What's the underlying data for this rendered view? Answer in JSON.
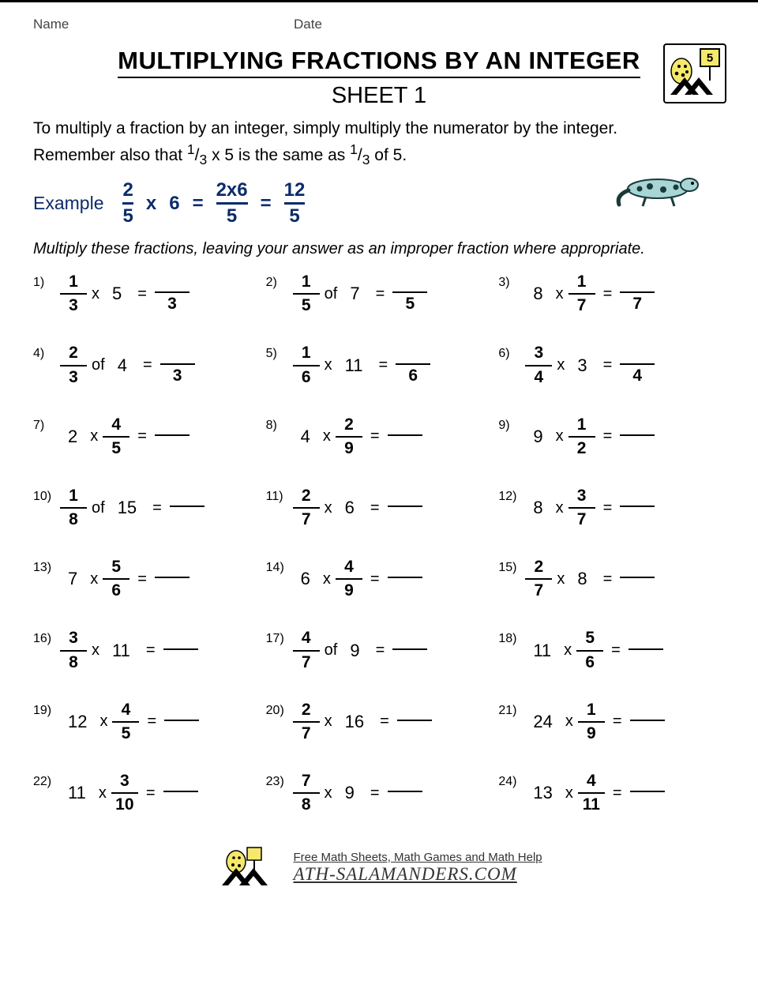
{
  "header": {
    "name_label": "Name",
    "date_label": "Date"
  },
  "title": "MULTIPLYING FRACTIONS BY AN INTEGER",
  "sheet_label": "SHEET 1",
  "logo_grade": "5",
  "instructions_line1": "To multiply a fraction by an integer, simply multiply the numerator by the integer.",
  "instructions_line2_a": "Remember also that ",
  "instructions_line2_b": " x 5 is the same as ",
  "instructions_line2_c": " of 5.",
  "inline_frac": {
    "num": "1",
    "den": "3"
  },
  "example": {
    "label": "Example",
    "f1": {
      "num": "2",
      "den": "5"
    },
    "op1": "x",
    "int1": "6",
    "eq1": "=",
    "f2": {
      "num": "2x6",
      "den": "5"
    },
    "eq2": "=",
    "f3": {
      "num": "12",
      "den": "5"
    }
  },
  "sub_instructions": "Multiply these fractions, leaving your answer as an improper fraction where appropriate.",
  "problems": [
    {
      "n": "1)",
      "layout": "frac_op_int",
      "frac": {
        "num": "1",
        "den": "3"
      },
      "op": "x",
      "int": "5",
      "ans_den": "3"
    },
    {
      "n": "2)",
      "layout": "frac_of_int",
      "frac": {
        "num": "1",
        "den": "5"
      },
      "op": "of",
      "int": "7",
      "ans_den": "5"
    },
    {
      "n": "3)",
      "layout": "int_op_frac",
      "int": "8",
      "op": "x",
      "frac": {
        "num": "1",
        "den": "7"
      },
      "ans_den": "7"
    },
    {
      "n": "4)",
      "layout": "frac_of_int",
      "frac": {
        "num": "2",
        "den": "3"
      },
      "op": "of",
      "int": "4",
      "ans_den": "3"
    },
    {
      "n": "5)",
      "layout": "frac_op_int",
      "frac": {
        "num": "1",
        "den": "6"
      },
      "op": "x",
      "int": "11",
      "ans_den": "6"
    },
    {
      "n": "6)",
      "layout": "frac_op_int",
      "frac": {
        "num": "3",
        "den": "4"
      },
      "op": "x",
      "int": "3",
      "ans_den": "4"
    },
    {
      "n": "7)",
      "layout": "int_op_frac",
      "int": "2",
      "op": "x",
      "frac": {
        "num": "4",
        "den": "5"
      },
      "ans_den": ""
    },
    {
      "n": "8)",
      "layout": "int_op_frac",
      "int": "4",
      "op": "x",
      "frac": {
        "num": "2",
        "den": "9"
      },
      "ans_den": ""
    },
    {
      "n": "9)",
      "layout": "int_op_frac",
      "int": "9",
      "op": "x",
      "frac": {
        "num": "1",
        "den": "2"
      },
      "ans_den": ""
    },
    {
      "n": "10)",
      "layout": "frac_of_int",
      "frac": {
        "num": "1",
        "den": "8"
      },
      "op": "of",
      "int": "15",
      "ans_den": ""
    },
    {
      "n": "11)",
      "layout": "frac_op_int",
      "frac": {
        "num": "2",
        "den": "7"
      },
      "op": "x",
      "int": "6",
      "ans_den": ""
    },
    {
      "n": "12)",
      "layout": "int_op_frac",
      "int": "8",
      "op": "x",
      "frac": {
        "num": "3",
        "den": "7"
      },
      "ans_den": ""
    },
    {
      "n": "13)",
      "layout": "int_op_frac",
      "int": "7",
      "op": "x",
      "frac": {
        "num": "5",
        "den": "6"
      },
      "ans_den": ""
    },
    {
      "n": "14)",
      "layout": "int_op_frac",
      "int": "6",
      "op": "x",
      "frac": {
        "num": "4",
        "den": "9"
      },
      "ans_den": ""
    },
    {
      "n": "15)",
      "layout": "frac_op_int",
      "frac": {
        "num": "2",
        "den": "7"
      },
      "op": "x",
      "int": "8",
      "ans_den": ""
    },
    {
      "n": "16)",
      "layout": "frac_op_int",
      "frac": {
        "num": "3",
        "den": "8"
      },
      "op": "x",
      "int": "11",
      "ans_den": ""
    },
    {
      "n": "17)",
      "layout": "frac_of_int",
      "frac": {
        "num": "4",
        "den": "7"
      },
      "op": "of",
      "int": "9",
      "ans_den": ""
    },
    {
      "n": "18)",
      "layout": "int_op_frac",
      "int": "11",
      "op": "x",
      "frac": {
        "num": "5",
        "den": "6"
      },
      "ans_den": ""
    },
    {
      "n": "19)",
      "layout": "int_op_frac",
      "int": "12",
      "op": "x",
      "frac": {
        "num": "4",
        "den": "5"
      },
      "ans_den": ""
    },
    {
      "n": "20)",
      "layout": "frac_op_int",
      "frac": {
        "num": "2",
        "den": "7"
      },
      "op": "x",
      "int": "16",
      "ans_den": ""
    },
    {
      "n": "21)",
      "layout": "int_op_frac",
      "int": "24",
      "op": "x",
      "frac": {
        "num": "1",
        "den": "9"
      },
      "ans_den": ""
    },
    {
      "n": "22)",
      "layout": "int_op_frac",
      "int": "11",
      "op": "x",
      "frac": {
        "num": "3",
        "den": "10"
      },
      "ans_den": ""
    },
    {
      "n": "23)",
      "layout": "frac_op_int",
      "frac": {
        "num": "7",
        "den": "8"
      },
      "op": "x",
      "int": "9",
      "ans_den": ""
    },
    {
      "n": "24)",
      "layout": "int_op_frac",
      "int": "13",
      "op": "x",
      "frac": {
        "num": "4",
        "den": "11"
      },
      "ans_den": ""
    }
  ],
  "footer": {
    "tagline": "Free Math Sheets, Math Games and Math Help",
    "brand": "ATH-SALAMANDERS.COM"
  },
  "colors": {
    "ink": "#000000",
    "accent": "#0b2b6b",
    "background": "#ffffff"
  }
}
